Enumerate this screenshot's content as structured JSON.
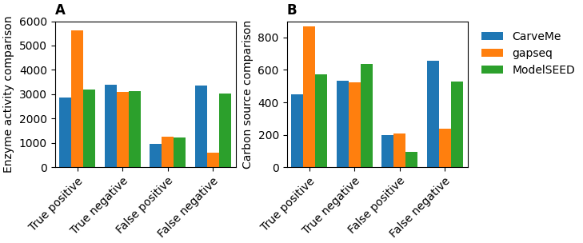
{
  "chart_data": [
    {
      "type": "bar",
      "title": "A",
      "y_label": "Enzyme activity comparison",
      "categories": [
        "True positive",
        "True negative",
        "False positive",
        "False negative"
      ],
      "series": [
        {
          "name": "CarveMe",
          "values": [
            2880,
            3400,
            950,
            3350
          ]
        },
        {
          "name": "gapseq",
          "values": [
            5620,
            3100,
            1250,
            620
          ]
        },
        {
          "name": "ModelSEED",
          "values": [
            3200,
            3120,
            1230,
            3020
          ]
        }
      ],
      "ylim": [
        0,
        6000
      ],
      "yticks": [
        0,
        1000,
        2000,
        3000,
        4000,
        5000,
        6000
      ]
    },
    {
      "type": "bar",
      "title": "B",
      "y_label": "Carbon source comparison",
      "categories": [
        "True positive",
        "True negative",
        "False positive",
        "False negative"
      ],
      "series": [
        {
          "name": "CarveMe",
          "values": [
            450,
            535,
            200,
            655
          ]
        },
        {
          "name": "gapseq",
          "values": [
            870,
            525,
            207,
            238
          ]
        },
        {
          "name": "ModelSEED",
          "values": [
            575,
            638,
            95,
            530
          ]
        }
      ],
      "ylim": [
        0,
        900
      ],
      "yticks": [
        0,
        200,
        400,
        600,
        800
      ],
      "legend": "upper left"
    }
  ]
}
